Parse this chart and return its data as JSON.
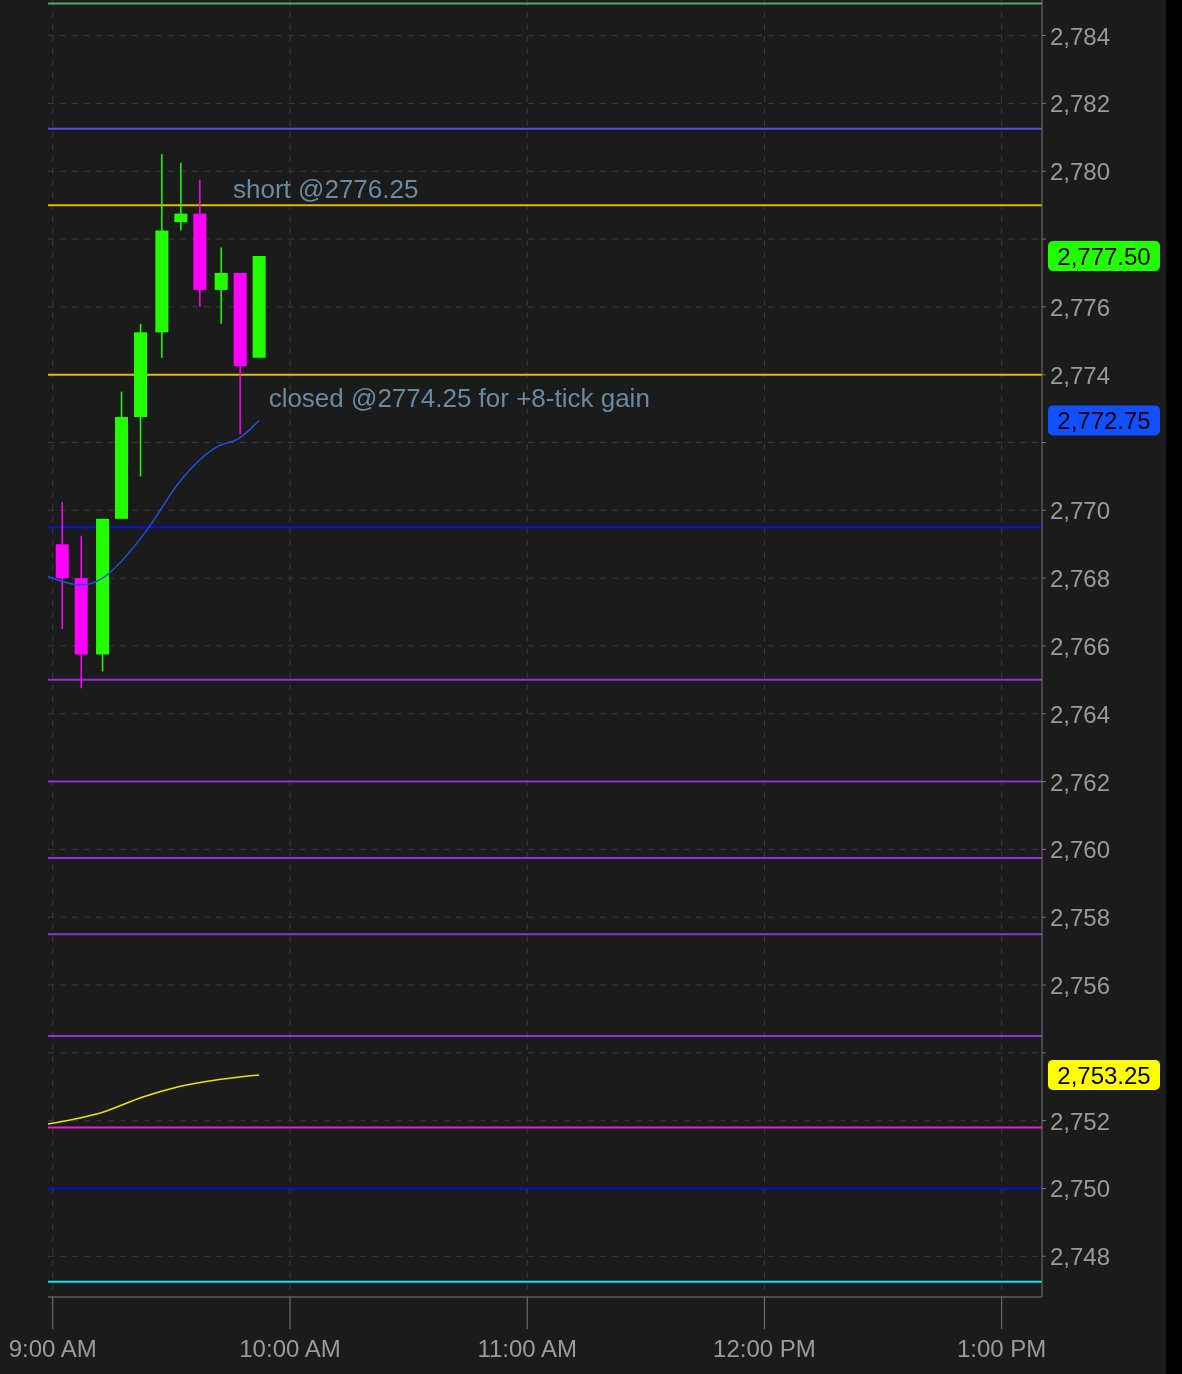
{
  "chart_data": {
    "type": "candlestick",
    "x": [
      9.04,
      9.12,
      9.21,
      9.29,
      9.37,
      9.46,
      9.54,
      9.62,
      9.71,
      9.79,
      9.87
    ],
    "ohlc": [
      [
        2769.0,
        2770.25,
        2766.5,
        2768.0
      ],
      [
        2768.0,
        2769.25,
        2764.75,
        2765.75
      ],
      [
        2765.75,
        2769.75,
        2765.25,
        2769.75
      ],
      [
        2769.75,
        2773.5,
        2769.75,
        2772.75
      ],
      [
        2772.75,
        2775.5,
        2771.0,
        2775.25
      ],
      [
        2775.25,
        2780.5,
        2774.5,
        2778.25
      ],
      [
        2778.5,
        2780.25,
        2778.25,
        2778.75
      ],
      [
        2778.75,
        2779.75,
        2776.0,
        2776.5
      ],
      [
        2776.5,
        2777.75,
        2775.5,
        2777.0
      ],
      [
        2777.0,
        2777.0,
        2772.25,
        2774.25
      ],
      [
        2774.5,
        2777.5,
        2774.5,
        2777.5
      ]
    ],
    "colors": [
      "#ff00ff",
      "#ff00ff",
      "#22ff00",
      "#22ff00",
      "#22ff00",
      "#22ff00",
      "#22ff00",
      "#ff00ff",
      "#22ff00",
      "#ff00ff",
      "#22ff00"
    ],
    "series": [
      {
        "type": "line",
        "color": "#2050e0",
        "x": [
          8.98,
          9.12,
          9.21,
          9.29,
          9.41,
          9.53,
          9.7,
          9.78,
          9.87
        ],
        "values": [
          2768.05,
          2767.8,
          2768.0,
          2768.5,
          2769.55,
          2770.8,
          2771.9,
          2772.1,
          2772.65
        ]
      },
      {
        "type": "line",
        "color": "#e6e600",
        "x": [
          8.98,
          9.21,
          9.38,
          9.53,
          9.87
        ],
        "values": [
          2751.9,
          2752.25,
          2752.7,
          2753.0,
          2753.35
        ]
      }
    ],
    "xlim": [
      8.98,
      13.17
    ],
    "xticks": [
      {
        "value": 9,
        "label": "9:00 AM"
      },
      {
        "value": 10,
        "label": "10:00 AM"
      },
      {
        "value": 11,
        "label": "11:00 AM"
      },
      {
        "value": 12,
        "label": "12:00 PM"
      },
      {
        "value": 13,
        "label": "1:00 PM"
      }
    ],
    "ylim": [
      2746.8,
      2785.05
    ],
    "yticks": [
      {
        "value": 2748,
        "label": "2,748"
      },
      {
        "value": 2750,
        "label": "2,750"
      },
      {
        "value": 2752,
        "label": "2,752"
      },
      {
        "value": 2754,
        "label": null
      },
      {
        "value": 2756,
        "label": "2,756"
      },
      {
        "value": 2758,
        "label": "2,758"
      },
      {
        "value": 2760,
        "label": "2,760"
      },
      {
        "value": 2762,
        "label": "2,762"
      },
      {
        "value": 2764,
        "label": "2,764"
      },
      {
        "value": 2766,
        "label": "2,766"
      },
      {
        "value": 2768,
        "label": "2,768"
      },
      {
        "value": 2770,
        "label": "2,770"
      },
      {
        "value": 2772,
        "label": null
      },
      {
        "value": 2774,
        "label": "2,774"
      },
      {
        "value": 2776,
        "label": "2,776"
      },
      {
        "value": 2778,
        "label": null
      },
      {
        "value": 2780,
        "label": "2,780"
      },
      {
        "value": 2782,
        "label": "2,782"
      },
      {
        "value": 2784,
        "label": "2,784"
      }
    ],
    "grid": true,
    "ref_lines": [
      {
        "axis": "y",
        "value": 2784.95,
        "color": "#4caf50"
      },
      {
        "axis": "y",
        "value": 2781.25,
        "color": "#5a50d8"
      },
      {
        "axis": "y",
        "value": 2779.0,
        "color": "#e6b800"
      },
      {
        "axis": "y",
        "value": 2774.0,
        "color": "#e6b800"
      },
      {
        "axis": "y",
        "value": 2769.5,
        "color": "#0010f0"
      },
      {
        "axis": "y",
        "value": 2765.0,
        "color": "#9030e0"
      },
      {
        "axis": "y",
        "value": 2762.0,
        "color": "#9030e0"
      },
      {
        "axis": "y",
        "value": 2759.75,
        "color": "#9030e0"
      },
      {
        "axis": "y",
        "value": 2757.5,
        "color": "#9030e0"
      },
      {
        "axis": "y",
        "value": 2754.5,
        "color": "#9030e0"
      },
      {
        "axis": "y",
        "value": 2751.8,
        "color": "#ff10e0"
      },
      {
        "axis": "y",
        "value": 2750.0,
        "color": "#0010e0"
      },
      {
        "axis": "y",
        "value": 2747.25,
        "color": "#00e5f0"
      }
    ],
    "annotations": [
      {
        "text": "short @2776.25",
        "x": 9.76,
        "y": 2779.0
      },
      {
        "text": "closed @2774.25 for +8-tick gain",
        "x": 9.91,
        "y": 2774.0
      },
      "2,777.50",
      "2,772.75",
      "2,753.25"
    ]
  }
}
